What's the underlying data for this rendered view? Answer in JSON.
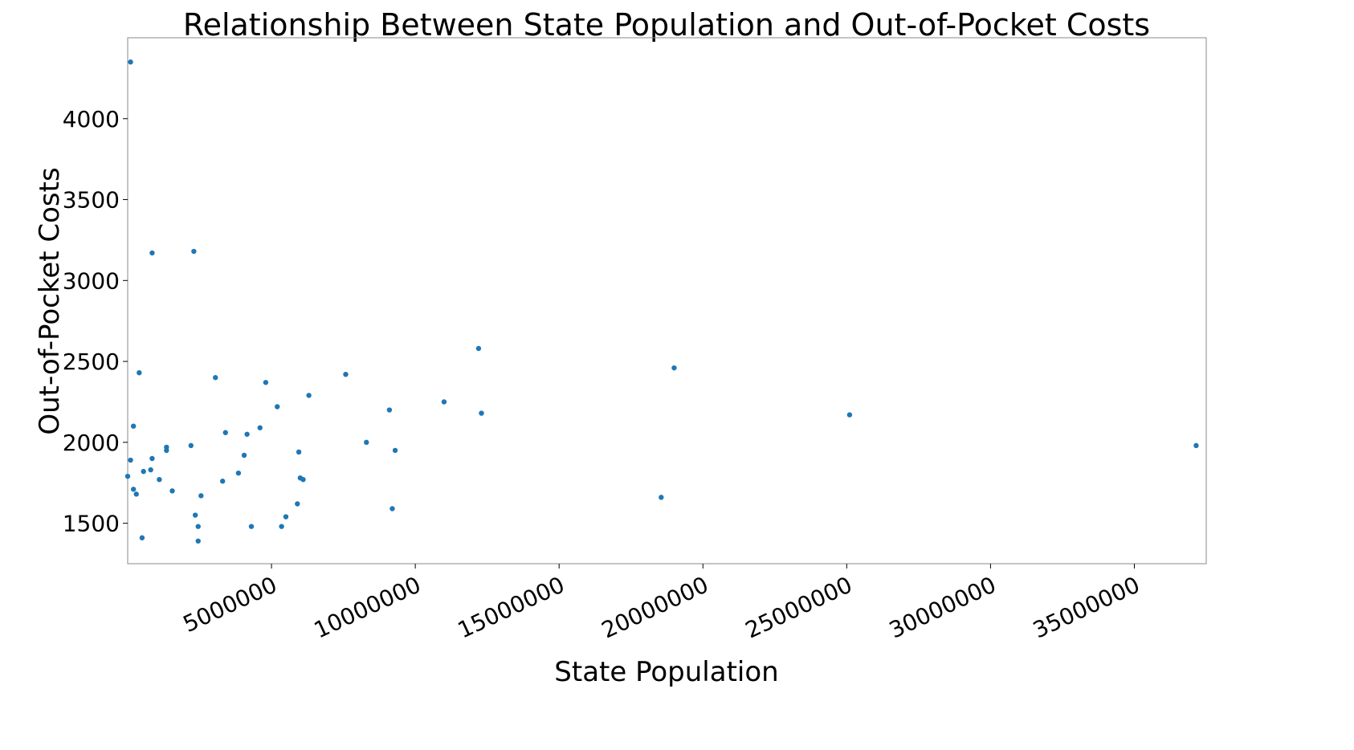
{
  "chart_data": {
    "type": "scatter",
    "title": "Relationship Between State Population and Out-of-Pocket Costs",
    "xlabel": "State Population",
    "ylabel": "Out-of-Pocket Costs",
    "xlim": [
      0,
      37500000
    ],
    "ylim": [
      1250,
      4500
    ],
    "xticks": [
      5000000,
      10000000,
      15000000,
      20000000,
      25000000,
      30000000,
      35000000
    ],
    "xtick_labels": [
      "5000000",
      "10000000",
      "15000000",
      "20000000",
      "25000000",
      "30000000",
      "35000000"
    ],
    "yticks": [
      1500,
      2000,
      2500,
      3000,
      3500,
      4000
    ],
    "ytick_labels": [
      "1500",
      "2000",
      "2500",
      "3000",
      "3500",
      "4000"
    ],
    "grid": false,
    "point_color": "#1f77b4",
    "series": [
      {
        "points": [
          {
            "x": 100000,
            "y": 4350
          },
          {
            "x": 850000,
            "y": 3170
          },
          {
            "x": 2300000,
            "y": 3180
          },
          {
            "x": 400000,
            "y": 2430
          },
          {
            "x": 3050000,
            "y": 2400
          },
          {
            "x": 12200000,
            "y": 2580
          },
          {
            "x": 19000000,
            "y": 2460
          },
          {
            "x": 7580000,
            "y": 2420
          },
          {
            "x": 4800000,
            "y": 2370
          },
          {
            "x": 6300000,
            "y": 2290
          },
          {
            "x": 11000000,
            "y": 2250
          },
          {
            "x": 5200000,
            "y": 2220
          },
          {
            "x": 9100000,
            "y": 2200
          },
          {
            "x": 12300000,
            "y": 2180
          },
          {
            "x": 25100000,
            "y": 2170
          },
          {
            "x": 200000,
            "y": 2100
          },
          {
            "x": 4600000,
            "y": 2090
          },
          {
            "x": 3400000,
            "y": 2060
          },
          {
            "x": 4150000,
            "y": 2050
          },
          {
            "x": 8300000,
            "y": 2000
          },
          {
            "x": 37150000,
            "y": 1980
          },
          {
            "x": 2200000,
            "y": 1980
          },
          {
            "x": 1350000,
            "y": 1970
          },
          {
            "x": 1350000,
            "y": 1950
          },
          {
            "x": 9300000,
            "y": 1950
          },
          {
            "x": 5950000,
            "y": 1940
          },
          {
            "x": 4050000,
            "y": 1920
          },
          {
            "x": 100000,
            "y": 1890
          },
          {
            "x": 850000,
            "y": 1900
          },
          {
            "x": 800000,
            "y": 1830
          },
          {
            "x": 550000,
            "y": 1820
          },
          {
            "x": 3850000,
            "y": 1810
          },
          {
            "x": 1100000,
            "y": 1770
          },
          {
            "x": 0,
            "y": 1790
          },
          {
            "x": 6000000,
            "y": 1780
          },
          {
            "x": 6100000,
            "y": 1770
          },
          {
            "x": 3300000,
            "y": 1760
          },
          {
            "x": 1550000,
            "y": 1700
          },
          {
            "x": 200000,
            "y": 1710
          },
          {
            "x": 300000,
            "y": 1680
          },
          {
            "x": 2550000,
            "y": 1670
          },
          {
            "x": 18550000,
            "y": 1660
          },
          {
            "x": 5900000,
            "y": 1620
          },
          {
            "x": 9200000,
            "y": 1590
          },
          {
            "x": 2350000,
            "y": 1550
          },
          {
            "x": 5500000,
            "y": 1540
          },
          {
            "x": 2450000,
            "y": 1480
          },
          {
            "x": 4300000,
            "y": 1480
          },
          {
            "x": 5350000,
            "y": 1480
          },
          {
            "x": 500000,
            "y": 1410
          },
          {
            "x": 2450000,
            "y": 1390
          }
        ]
      }
    ]
  }
}
